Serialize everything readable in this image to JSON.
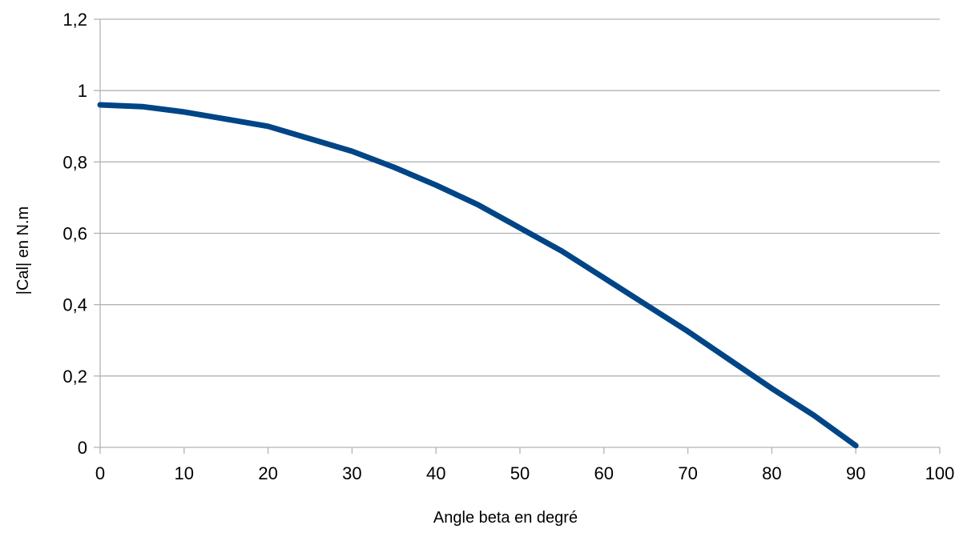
{
  "chart_data": {
    "type": "line",
    "xlabel": "Angle beta en degré",
    "ylabel": "|Cal| en N.m",
    "xlim": [
      0,
      100
    ],
    "ylim": [
      0,
      1.2
    ],
    "x_ticks": [
      0,
      10,
      20,
      30,
      40,
      50,
      60,
      70,
      80,
      90,
      100
    ],
    "x_tick_labels": [
      "0",
      "10",
      "20",
      "30",
      "40",
      "50",
      "60",
      "70",
      "80",
      "90",
      "100"
    ],
    "y_ticks": [
      0,
      0.2,
      0.4,
      0.6,
      0.8,
      1,
      1.2
    ],
    "y_tick_labels": [
      "0",
      "0,2",
      "0,4",
      "0,6",
      "0,8",
      "1",
      "1,2"
    ],
    "grid": "horizontal",
    "legend": "none",
    "series": [
      {
        "color": "#004586",
        "x": [
          0,
          5,
          10,
          15,
          20,
          25,
          30,
          35,
          40,
          45,
          50,
          55,
          60,
          65,
          70,
          75,
          80,
          85,
          90
        ],
        "values": [
          0.96,
          0.955,
          0.94,
          0.92,
          0.9,
          0.865,
          0.83,
          0.785,
          0.735,
          0.68,
          0.615,
          0.55,
          0.475,
          0.4,
          0.325,
          0.245,
          0.165,
          0.09,
          0.005
        ]
      }
    ]
  }
}
